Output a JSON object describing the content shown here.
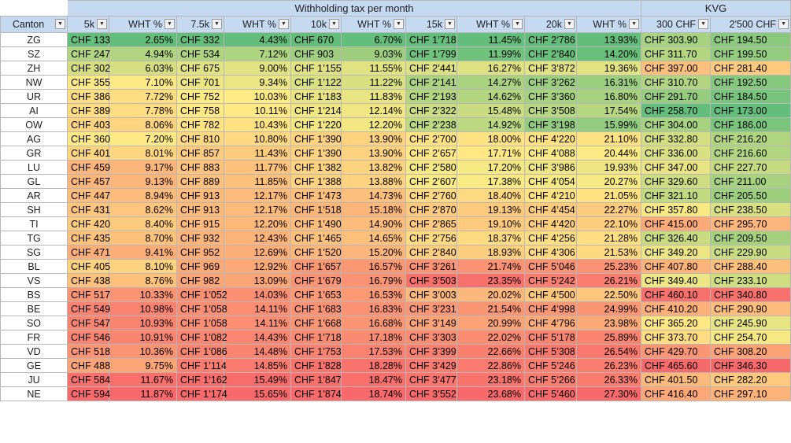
{
  "group_headers": {
    "withholding": "Withholding tax per month",
    "kvg": "KVG"
  },
  "columns": [
    "Canton",
    "5k",
    "WHT %",
    "7.5k",
    "WHT %",
    "10k",
    "WHT %",
    "15k",
    "WHT %",
    "20k",
    "WHT %",
    "300 CHF",
    "2'500 CHF"
  ],
  "rows": [
    [
      "ZG",
      "CHF 133",
      "2.65%",
      "CHF 332",
      "4.43%",
      "CHF 670",
      "6.70%",
      "CHF 1’718",
      "11.45%",
      "CHF 2’786",
      "13.93%",
      "CHF 303.90",
      "CHF 194.50"
    ],
    [
      "SZ",
      "CHF 247",
      "4.94%",
      "CHF 534",
      "7.12%",
      "CHF 903",
      "9.03%",
      "CHF 1’799",
      "11.99%",
      "CHF 2’840",
      "14.20%",
      "CHF 311.70",
      "CHF 199.50"
    ],
    [
      "ZH",
      "CHF 302",
      "6.03%",
      "CHF 675",
      "9.00%",
      "CHF 1’155",
      "11.55%",
      "CHF 2’441",
      "16.27%",
      "CHF 3’872",
      "19.36%",
      "CHF 397.00",
      "CHF 281.40"
    ],
    [
      "NW",
      "CHF 355",
      "7.10%",
      "CHF 701",
      "9.34%",
      "CHF 1’122",
      "11.22%",
      "CHF 2’141",
      "14.27%",
      "CHF 3’262",
      "16.31%",
      "CHF 310.70",
      "CHF 192.50"
    ],
    [
      "UR",
      "CHF 386",
      "7.72%",
      "CHF 752",
      "10.03%",
      "CHF 1’183",
      "11.83%",
      "CHF 2’193",
      "14.62%",
      "CHF 3’360",
      "16.80%",
      "CHF 291.70",
      "CHF 184.50"
    ],
    [
      "AI",
      "CHF 389",
      "7.78%",
      "CHF 758",
      "10.11%",
      "CHF 1’214",
      "12.14%",
      "CHF 2’322",
      "15.48%",
      "CHF 3’508",
      "17.54%",
      "CHF 258.70",
      "CHF 173.00"
    ],
    [
      "OW",
      "CHF 403",
      "8.06%",
      "CHF 782",
      "10.43%",
      "CHF 1’220",
      "12.20%",
      "CHF 2’238",
      "14.92%",
      "CHF 3’198",
      "15.99%",
      "CHF 304.00",
      "CHF 186.00"
    ],
    [
      "AG",
      "CHF 360",
      "7.20%",
      "CHF 810",
      "10.80%",
      "CHF 1’390",
      "13.90%",
      "CHF 2’700",
      "18.00%",
      "CHF 4’220",
      "21.10%",
      "CHF 332.80",
      "CHF 216.20"
    ],
    [
      "GR",
      "CHF 401",
      "8.01%",
      "CHF 857",
      "11.43%",
      "CHF 1’390",
      "13.90%",
      "CHF 2’657",
      "17.71%",
      "CHF 4’088",
      "20.44%",
      "CHF 336.00",
      "CHF 216.60"
    ],
    [
      "LU",
      "CHF 459",
      "9.17%",
      "CHF 883",
      "11.77%",
      "CHF 1’382",
      "13.82%",
      "CHF 2’580",
      "17.20%",
      "CHF 3’986",
      "19.93%",
      "CHF 347.00",
      "CHF 227.70"
    ],
    [
      "GL",
      "CHF 457",
      "9.13%",
      "CHF 889",
      "11.85%",
      "CHF 1’388",
      "13.88%",
      "CHF 2’607",
      "17.38%",
      "CHF 4’054",
      "20.27%",
      "CHF 329.60",
      "CHF 211.00"
    ],
    [
      "AR",
      "CHF 447",
      "8.94%",
      "CHF 913",
      "12.17%",
      "CHF 1’473",
      "14.73%",
      "CHF 2’760",
      "18.40%",
      "CHF 4’210",
      "21.05%",
      "CHF 321.10",
      "CHF 205.50"
    ],
    [
      "SH",
      "CHF 431",
      "8.62%",
      "CHF 913",
      "12.17%",
      "CHF 1’518",
      "15.18%",
      "CHF 2’870",
      "19.13%",
      "CHF 4’454",
      "22.27%",
      "CHF 357.80",
      "CHF 238.50"
    ],
    [
      "TI",
      "CHF 420",
      "8.40%",
      "CHF 915",
      "12.20%",
      "CHF 1’490",
      "14.90%",
      "CHF 2’865",
      "19.10%",
      "CHF 4’420",
      "22.10%",
      "CHF 415.00",
      "CHF 295.70"
    ],
    [
      "TG",
      "CHF 435",
      "8.70%",
      "CHF 932",
      "12.43%",
      "CHF 1’465",
      "14.65%",
      "CHF 2’756",
      "18.37%",
      "CHF 4’256",
      "21.28%",
      "CHF 326.40",
      "CHF 209.50"
    ],
    [
      "SG",
      "CHF 471",
      "9.41%",
      "CHF 952",
      "12.69%",
      "CHF 1’520",
      "15.20%",
      "CHF 2’840",
      "18.93%",
      "CHF 4’306",
      "21.53%",
      "CHF 349.20",
      "CHF 229.90"
    ],
    [
      "BL",
      "CHF 405",
      "8.10%",
      "CHF 969",
      "12.92%",
      "CHF 1’657",
      "16.57%",
      "CHF 3’261",
      "21.74%",
      "CHF 5’046",
      "25.23%",
      "CHF 407.80",
      "CHF 288.40"
    ],
    [
      "VS",
      "CHF 438",
      "8.76%",
      "CHF 982",
      "13.09%",
      "CHF 1’679",
      "16.79%",
      "CHF 3’503",
      "23.35%",
      "CHF 5’242",
      "26.21%",
      "CHF 349.40",
      "CHF 233.10"
    ],
    [
      "BS",
      "CHF 517",
      "10.33%",
      "CHF 1’052",
      "14.03%",
      "CHF 1’653",
      "16.53%",
      "CHF 3’003",
      "20.02%",
      "CHF 4’500",
      "22.50%",
      "CHF 460.10",
      "CHF 340.80"
    ],
    [
      "BE",
      "CHF 549",
      "10.98%",
      "CHF 1’058",
      "14.11%",
      "CHF 1’683",
      "16.83%",
      "CHF 3’231",
      "21.54%",
      "CHF 4’998",
      "24.99%",
      "CHF 410.20",
      "CHF 290.90"
    ],
    [
      "SO",
      "CHF 547",
      "10.93%",
      "CHF 1’058",
      "14.11%",
      "CHF 1’668",
      "16.68%",
      "CHF 3’149",
      "20.99%",
      "CHF 4’796",
      "23.98%",
      "CHF 365.20",
      "CHF 245.90"
    ],
    [
      "FR",
      "CHF 546",
      "10.91%",
      "CHF 1’082",
      "14.43%",
      "CHF 1’718",
      "17.18%",
      "CHF 3’303",
      "22.02%",
      "CHF 5’178",
      "25.89%",
      "CHF 373.70",
      "CHF 254.70"
    ],
    [
      "VD",
      "CHF 518",
      "10.36%",
      "CHF 1’086",
      "14.48%",
      "CHF 1’753",
      "17.53%",
      "CHF 3’399",
      "22.66%",
      "CHF 5’308",
      "26.54%",
      "CHF 429.70",
      "CHF 308.20"
    ],
    [
      "GE",
      "CHF 488",
      "9.75%",
      "CHF 1’114",
      "14.85%",
      "CHF 1’828",
      "18.28%",
      "CHF 3’429",
      "22.86%",
      "CHF 5’246",
      "26.23%",
      "CHF 465.60",
      "CHF 346.30"
    ],
    [
      "JU",
      "CHF 584",
      "11.67%",
      "CHF 1’162",
      "15.49%",
      "CHF 1’847",
      "18.47%",
      "CHF 3’477",
      "23.18%",
      "CHF 5’266",
      "26.33%",
      "CHF 401.50",
      "CHF 282.20"
    ],
    [
      "NE",
      "CHF 594",
      "11.87%",
      "CHF 1’174",
      "15.65%",
      "CHF 1’874",
      "18.74%",
      "CHF 3’552",
      "23.68%",
      "CHF 5’460",
      "27.30%",
      "CHF 416.40",
      "CHF 297.10"
    ]
  ],
  "colors": {
    "header_bg": "#c5d9f1",
    "scale_low": "#63be7b",
    "scale_mid": "#ffeb84",
    "scale_high": "#f8696b"
  }
}
